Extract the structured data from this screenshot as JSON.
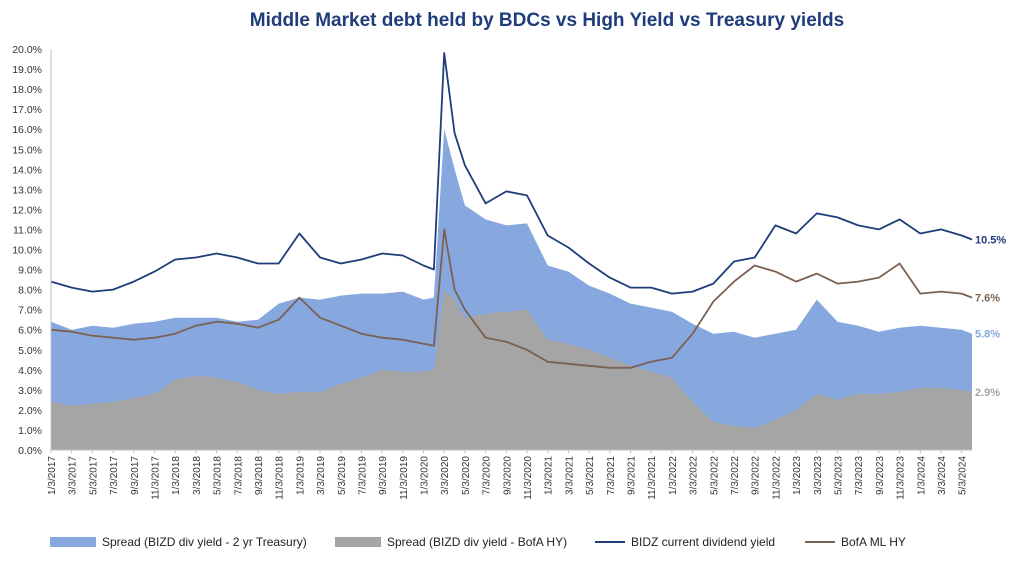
{
  "colors": {
    "title": "#1f3d7a",
    "spread_2yr": "#86a8df",
    "spread_hy": "#a5a5a5",
    "bizd_yield": "#1f3d7a",
    "bofa_hy": "#7b6152",
    "axis": "#bfbfbf"
  },
  "chart_data": {
    "type": "area",
    "title": "Middle Market debt held by BDCs vs High Yield vs Treasury yields",
    "ylim": [
      0,
      20
    ],
    "y_ticks": [
      "0.0%",
      "1.0%",
      "2.0%",
      "3.0%",
      "4.0%",
      "5.0%",
      "6.0%",
      "7.0%",
      "8.0%",
      "9.0%",
      "10.0%",
      "11.0%",
      "12.0%",
      "13.0%",
      "14.0%",
      "15.0%",
      "16.0%",
      "17.0%",
      "18.0%",
      "19.0%",
      "20.0%"
    ],
    "x_tick_labels": [
      "1/3/2017",
      "3/3/2017",
      "5/3/2017",
      "7/3/2017",
      "9/3/2017",
      "11/3/2017",
      "1/3/2018",
      "3/3/2018",
      "5/3/2018",
      "7/3/2018",
      "9/3/2018",
      "11/3/2018",
      "1/3/2019",
      "3/3/2019",
      "5/3/2019",
      "7/3/2019",
      "9/3/2019",
      "11/3/2019",
      "1/3/2020",
      "3/3/2020",
      "5/3/2020",
      "7/3/2020",
      "9/3/2020",
      "11/3/2020",
      "1/3/2021",
      "3/3/2021",
      "5/3/2021",
      "7/3/2021",
      "9/3/2021",
      "11/3/2021",
      "1/3/2022",
      "3/3/2022",
      "5/3/2022",
      "7/3/2022",
      "9/3/2022",
      "11/3/2022",
      "1/3/2023",
      "3/3/2023",
      "5/3/2023",
      "7/3/2023",
      "9/3/2023",
      "11/3/2023",
      "1/3/2024",
      "3/3/2024",
      "5/3/2024"
    ],
    "x": [
      "2017-01",
      "2017-03",
      "2017-05",
      "2017-07",
      "2017-09",
      "2017-11",
      "2018-01",
      "2018-03",
      "2018-05",
      "2018-07",
      "2018-09",
      "2018-11",
      "2019-01",
      "2019-03",
      "2019-05",
      "2019-07",
      "2019-09",
      "2019-11",
      "2020-01",
      "2020-02",
      "2020-03",
      "2020-04",
      "2020-05",
      "2020-07",
      "2020-09",
      "2020-11",
      "2021-01",
      "2021-03",
      "2021-05",
      "2021-07",
      "2021-09",
      "2021-11",
      "2022-01",
      "2022-03",
      "2022-05",
      "2022-07",
      "2022-09",
      "2022-11",
      "2023-01",
      "2023-03",
      "2023-05",
      "2023-07",
      "2023-09",
      "2023-11",
      "2024-01",
      "2024-03",
      "2024-05",
      "2024-06"
    ],
    "series": [
      {
        "name": "Spread (BIZD div yield - 2 yr Treasury)",
        "kind": "area",
        "color": "#86a8df",
        "values": [
          6.4,
          6.0,
          6.2,
          6.1,
          6.3,
          6.4,
          6.6,
          6.6,
          6.6,
          6.4,
          6.5,
          7.3,
          7.6,
          7.5,
          7.7,
          7.8,
          7.8,
          7.9,
          7.5,
          7.6,
          16.0,
          14.0,
          12.2,
          11.5,
          11.2,
          11.3,
          9.2,
          8.9,
          8.2,
          7.8,
          7.3,
          7.1,
          6.9,
          6.3,
          5.8,
          5.9,
          5.6,
          5.8,
          6.0,
          7.5,
          6.4,
          6.2,
          5.9,
          6.1,
          6.2,
          6.1,
          6.0,
          5.8
        ]
      },
      {
        "name": "Spread (BIZD div yield - BofA HY)",
        "kind": "area",
        "color": "#a5a5a5",
        "values": [
          2.4,
          2.2,
          2.3,
          2.4,
          2.6,
          2.8,
          3.5,
          3.7,
          3.6,
          3.4,
          3.0,
          2.8,
          2.9,
          2.9,
          3.3,
          3.6,
          4.0,
          3.9,
          3.9,
          4.0,
          8.0,
          7.5,
          6.6,
          6.8,
          6.9,
          7.0,
          5.5,
          5.3,
          5.0,
          4.6,
          4.2,
          3.9,
          3.6,
          2.4,
          1.4,
          1.2,
          1.1,
          1.5,
          2.0,
          2.8,
          2.5,
          2.8,
          2.8,
          2.9,
          3.1,
          3.1,
          3.0,
          2.9
        ]
      },
      {
        "name": "BIDZ current dividend yield",
        "kind": "line",
        "color": "#1f3d7a",
        "values": [
          8.4,
          8.1,
          7.9,
          8.0,
          8.4,
          8.9,
          9.5,
          9.6,
          9.8,
          9.6,
          9.3,
          9.3,
          10.8,
          9.6,
          9.3,
          9.5,
          9.8,
          9.7,
          9.2,
          9.0,
          19.8,
          15.8,
          14.2,
          12.3,
          12.9,
          12.7,
          10.7,
          10.1,
          9.3,
          8.6,
          8.1,
          8.1,
          7.8,
          7.9,
          8.3,
          9.4,
          9.6,
          11.2,
          10.8,
          11.8,
          11.6,
          11.2,
          11.0,
          11.5,
          10.8,
          11.0,
          10.7,
          10.5
        ]
      },
      {
        "name": "BofA ML HY",
        "kind": "line",
        "color": "#7b6152",
        "values": [
          6.0,
          5.9,
          5.7,
          5.6,
          5.5,
          5.6,
          5.8,
          6.2,
          6.4,
          6.3,
          6.1,
          6.5,
          7.6,
          6.6,
          6.2,
          5.8,
          5.6,
          5.5,
          5.3,
          5.2,
          11.0,
          8.0,
          7.0,
          5.6,
          5.4,
          5.0,
          4.4,
          4.3,
          4.2,
          4.1,
          4.1,
          4.4,
          4.6,
          5.8,
          7.4,
          8.4,
          9.2,
          8.9,
          8.4,
          8.8,
          8.3,
          8.4,
          8.6,
          9.3,
          7.8,
          7.9,
          7.8,
          7.6
        ]
      }
    ],
    "end_labels": [
      "10.5%",
      "7.6%",
      "5.8%",
      "2.9%"
    ],
    "grid": false,
    "legend_position": "bottom"
  },
  "legend": {
    "item1": "Spread (BIZD div yield - 2 yr Treasury)",
    "item2": "Spread (BIZD div yield - BofA HY)",
    "item3": "BIDZ current dividend yield",
    "item4": "BofA ML HY"
  }
}
